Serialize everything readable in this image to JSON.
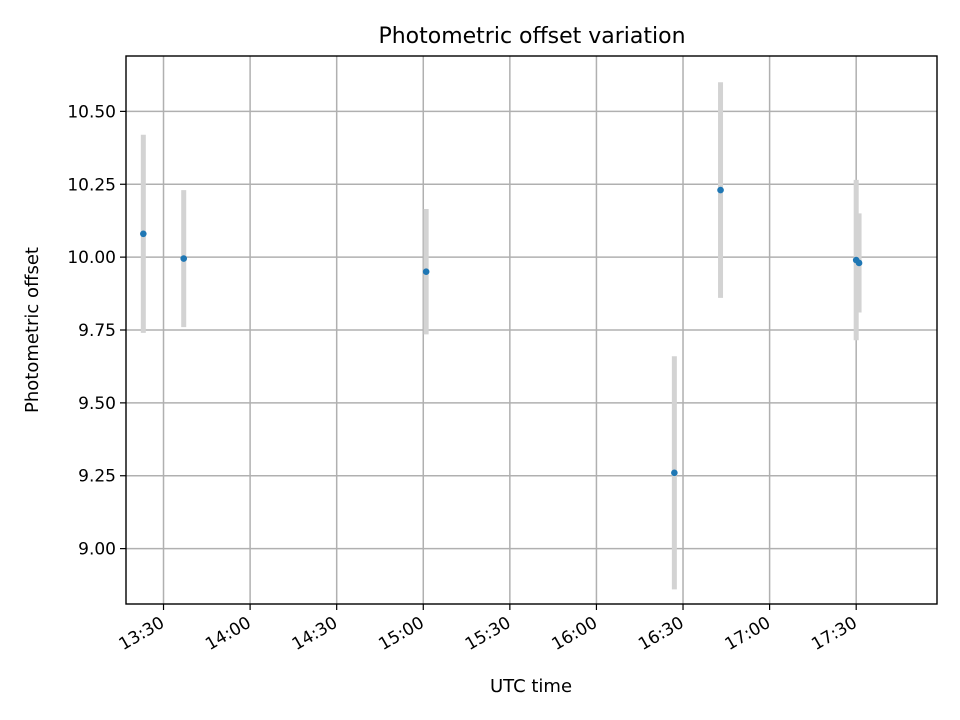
{
  "chart_data": {
    "type": "scatter",
    "title": "Photometric offset variation",
    "xlabel": "UTC time",
    "ylabel": "Photometric offset",
    "x_ticks": [
      "13:30",
      "14:00",
      "14:30",
      "15:00",
      "15:30",
      "16:00",
      "16:30",
      "17:00",
      "17:30"
    ],
    "y_ticks": [
      "9.00",
      "9.25",
      "9.50",
      "9.75",
      "10.00",
      "10.25",
      "10.50"
    ],
    "xlim": [
      "13:17",
      "17:58"
    ],
    "ylim": [
      8.81,
      10.69
    ],
    "grid": true,
    "colors": {
      "points": "#1f77b4",
      "errorbars": "#d3d3d3",
      "grid": "#b0b0b0"
    },
    "points": [
      {
        "x": "13:23",
        "y": 10.08,
        "err": 0.34
      },
      {
        "x": "13:37",
        "y": 9.995,
        "err": 0.235
      },
      {
        "x": "15:01",
        "y": 9.95,
        "err": 0.215
      },
      {
        "x": "16:27",
        "y": 9.26,
        "err": 0.4
      },
      {
        "x": "16:43",
        "y": 10.23,
        "err": 0.37
      },
      {
        "x": "17:30",
        "y": 9.99,
        "err": 0.275
      },
      {
        "x": "17:31",
        "y": 9.98,
        "err": 0.17
      }
    ]
  }
}
